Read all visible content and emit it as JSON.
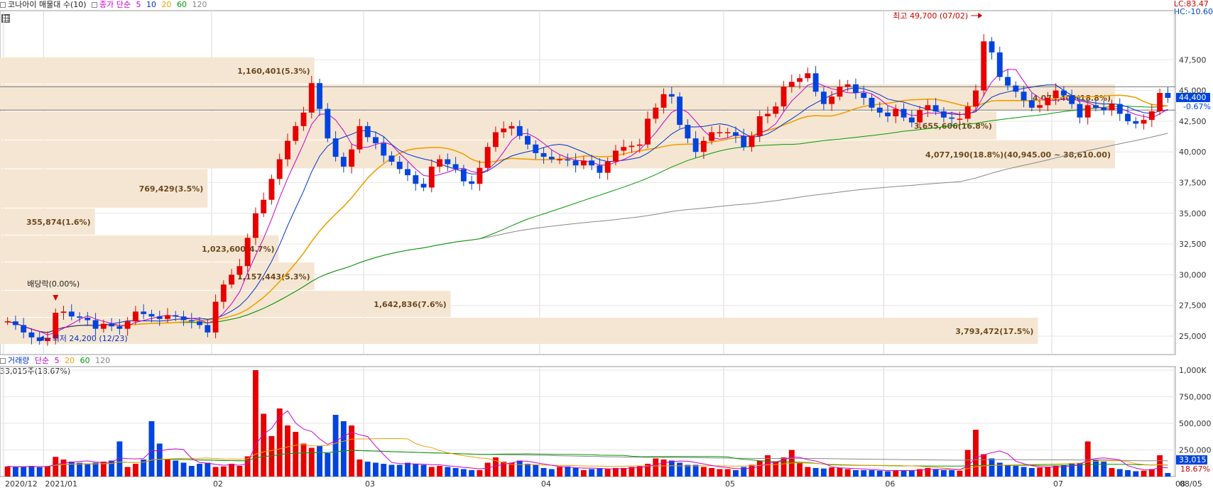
{
  "header": {
    "title": "코나아이 매물대 수(10)",
    "ma_title": "종가 단순",
    "ma_periods": [
      "5",
      "10",
      "20",
      "60",
      "120"
    ],
    "ma_colors": [
      "#cc00cc",
      "#0033cc",
      "#f0a000",
      "#009900",
      "#888888"
    ],
    "lc": "LC:83.47",
    "hc": "HC:-10.60"
  },
  "volume_header": {
    "title": "거래량",
    "ma_title": "단순",
    "ma_periods": [
      "5",
      "20",
      "60",
      "120"
    ],
    "ma_colors": [
      "#cc00cc",
      "#f0a000",
      "#009900",
      "#888888"
    ],
    "current": "33,015주(18.67%)"
  },
  "chart_data": [
    {
      "type": "candlestick",
      "title": "코나아이 매물대 수(10)",
      "x": {
        "tick_labels": [
          "2020/12",
          "2021/01",
          "02",
          "03",
          "04",
          "05",
          "06",
          "07",
          "08",
          "08/05"
        ]
      },
      "y": {
        "ylim": [
          23500,
          51500
        ],
        "tick_labels": [
          "25,000",
          "27,500",
          "30,000",
          "32,500",
          "35,000",
          "37,500",
          "40,000",
          "42,500",
          "45,000",
          "47,500"
        ]
      },
      "current_price": "44,400",
      "current_change": "-0.67%",
      "price_series": [
        26200,
        25900,
        25300,
        24900,
        24600,
        24800,
        26900,
        27000,
        26600,
        26500,
        26300,
        25600,
        26000,
        25800,
        25600,
        26200,
        27000,
        26800,
        26600,
        26400,
        26700,
        26600,
        26300,
        26200,
        25900,
        25300,
        27800,
        29200,
        30000,
        30700,
        33000,
        35000,
        36100,
        37800,
        39400,
        40900,
        42100,
        43200,
        45600,
        43500,
        41100,
        39600,
        38800,
        40200,
        42100,
        41200,
        40700,
        39700,
        39200,
        38600,
        38100,
        37400,
        37100,
        38800,
        39400,
        39000,
        38600,
        37600,
        37400,
        38700,
        40400,
        41600,
        41900,
        42100,
        41300,
        40600,
        39900,
        39600,
        39400,
        39400,
        39300,
        38900,
        39300,
        38900,
        38300,
        39200,
        40100,
        40400,
        40500,
        40600,
        42700,
        43600,
        44700,
        44500,
        42200,
        41100,
        40000,
        40900,
        41600,
        41600,
        41600,
        41300,
        40400,
        41300,
        42900,
        43100,
        43700,
        45300,
        45700,
        46000,
        46400,
        44900,
        43900,
        44500,
        45300,
        45500,
        44800,
        44400,
        43600,
        43200,
        42900,
        43500,
        42800,
        42400,
        43400,
        43800,
        43300,
        42800,
        42700,
        42700,
        43700,
        45000,
        49000,
        48100,
        46100,
        45400,
        44900,
        44200,
        43600,
        43800,
        44400,
        45000,
        44600,
        43900,
        42800,
        43800,
        43600,
        43400,
        43900,
        43100,
        42500,
        42300,
        42600,
        43300,
        44800,
        44400
      ],
      "annotations": [
        {
          "text": "최고 49,700 (07/02)",
          "color": "#d00000"
        },
        {
          "text": "최저 24,200 (12/23)",
          "color": "#0033cc"
        },
        {
          "text": "배당락(0.00%)",
          "color": "#222222"
        }
      ],
      "volume_profile": [
        {
          "label": "3,793,472(17.5%)",
          "price_low": 24300,
          "price_high": 26500,
          "pct": 17.5
        },
        {
          "label": "1,642,836(7.6%)",
          "price_low": 26500,
          "price_high": 28700,
          "pct": 7.6
        },
        {
          "label": "1,157,443(5.3%)",
          "price_low": 28700,
          "price_high": 31000,
          "pct": 5.3
        },
        {
          "label": "1,023,600(4.7%)",
          "price_low": 31000,
          "price_high": 33200,
          "pct": 4.7
        },
        {
          "label": "355,874(1.6%)",
          "price_low": 33200,
          "price_high": 35400,
          "pct": 1.6
        },
        {
          "label": "769,429(3.5%)",
          "price_low": 35400,
          "price_high": 38600,
          "pct": 3.5
        },
        {
          "label": "4,077,190(18.8%)(40,945.00 ~ 38,610.00)",
          "price_low": 38600,
          "price_high": 40945,
          "pct": 18.8
        },
        {
          "label": "3,655,606(16.8%)",
          "price_low": 40945,
          "price_high": 43300,
          "pct": 16.8
        },
        {
          "label": "4,073,403(18.8%)",
          "price_low": 43300,
          "price_high": 45500,
          "pct": 18.8
        },
        {
          "label": "1,160,401(5.3%)",
          "price_low": 45500,
          "price_high": 47700,
          "pct": 5.3
        }
      ],
      "reference_lines": [
        45300,
        43400
      ]
    },
    {
      "type": "bar",
      "title": "거래량",
      "y": {
        "ylim": [
          0,
          1000000
        ],
        "tick_labels": [
          "1,000K",
          "750,000",
          "500,000",
          "250,000"
        ]
      },
      "current_volume": "33,015",
      "current_pct": "18.67%",
      "volume_series": [
        95,
        90,
        92,
        100,
        88,
        98,
        185,
        160,
        140,
        130,
        120,
        130,
        140,
        150,
        330,
        90,
        120,
        160,
        520,
        310,
        160,
        150,
        130,
        100,
        120,
        130,
        90,
        95,
        120,
        100,
        190,
        1000,
        590,
        380,
        640,
        480,
        420,
        310,
        270,
        290,
        220,
        580,
        520,
        480,
        160,
        140,
        130,
        120,
        110,
        110,
        130,
        120,
        110,
        90,
        100,
        90,
        80,
        70,
        60,
        60,
        130,
        180,
        140,
        130,
        150,
        120,
        110,
        80,
        70,
        90,
        95,
        80,
        60,
        70,
        80,
        70,
        80,
        80,
        90,
        100,
        120,
        170,
        160,
        150,
        130,
        110,
        110,
        90,
        80,
        70,
        70,
        60,
        90,
        110,
        150,
        200,
        140,
        180,
        250,
        130,
        90,
        80,
        75,
        85,
        80,
        70,
        60,
        60,
        60,
        55,
        50,
        60,
        60,
        60,
        70,
        80,
        70,
        60,
        60,
        55,
        250,
        440,
        210,
        170,
        130,
        110,
        100,
        90,
        80,
        85,
        90,
        100,
        110,
        120,
        125,
        330,
        160,
        140,
        80,
        70,
        60,
        50,
        55,
        70,
        200,
        33
      ],
      "volume_units": "thousand"
    }
  ]
}
